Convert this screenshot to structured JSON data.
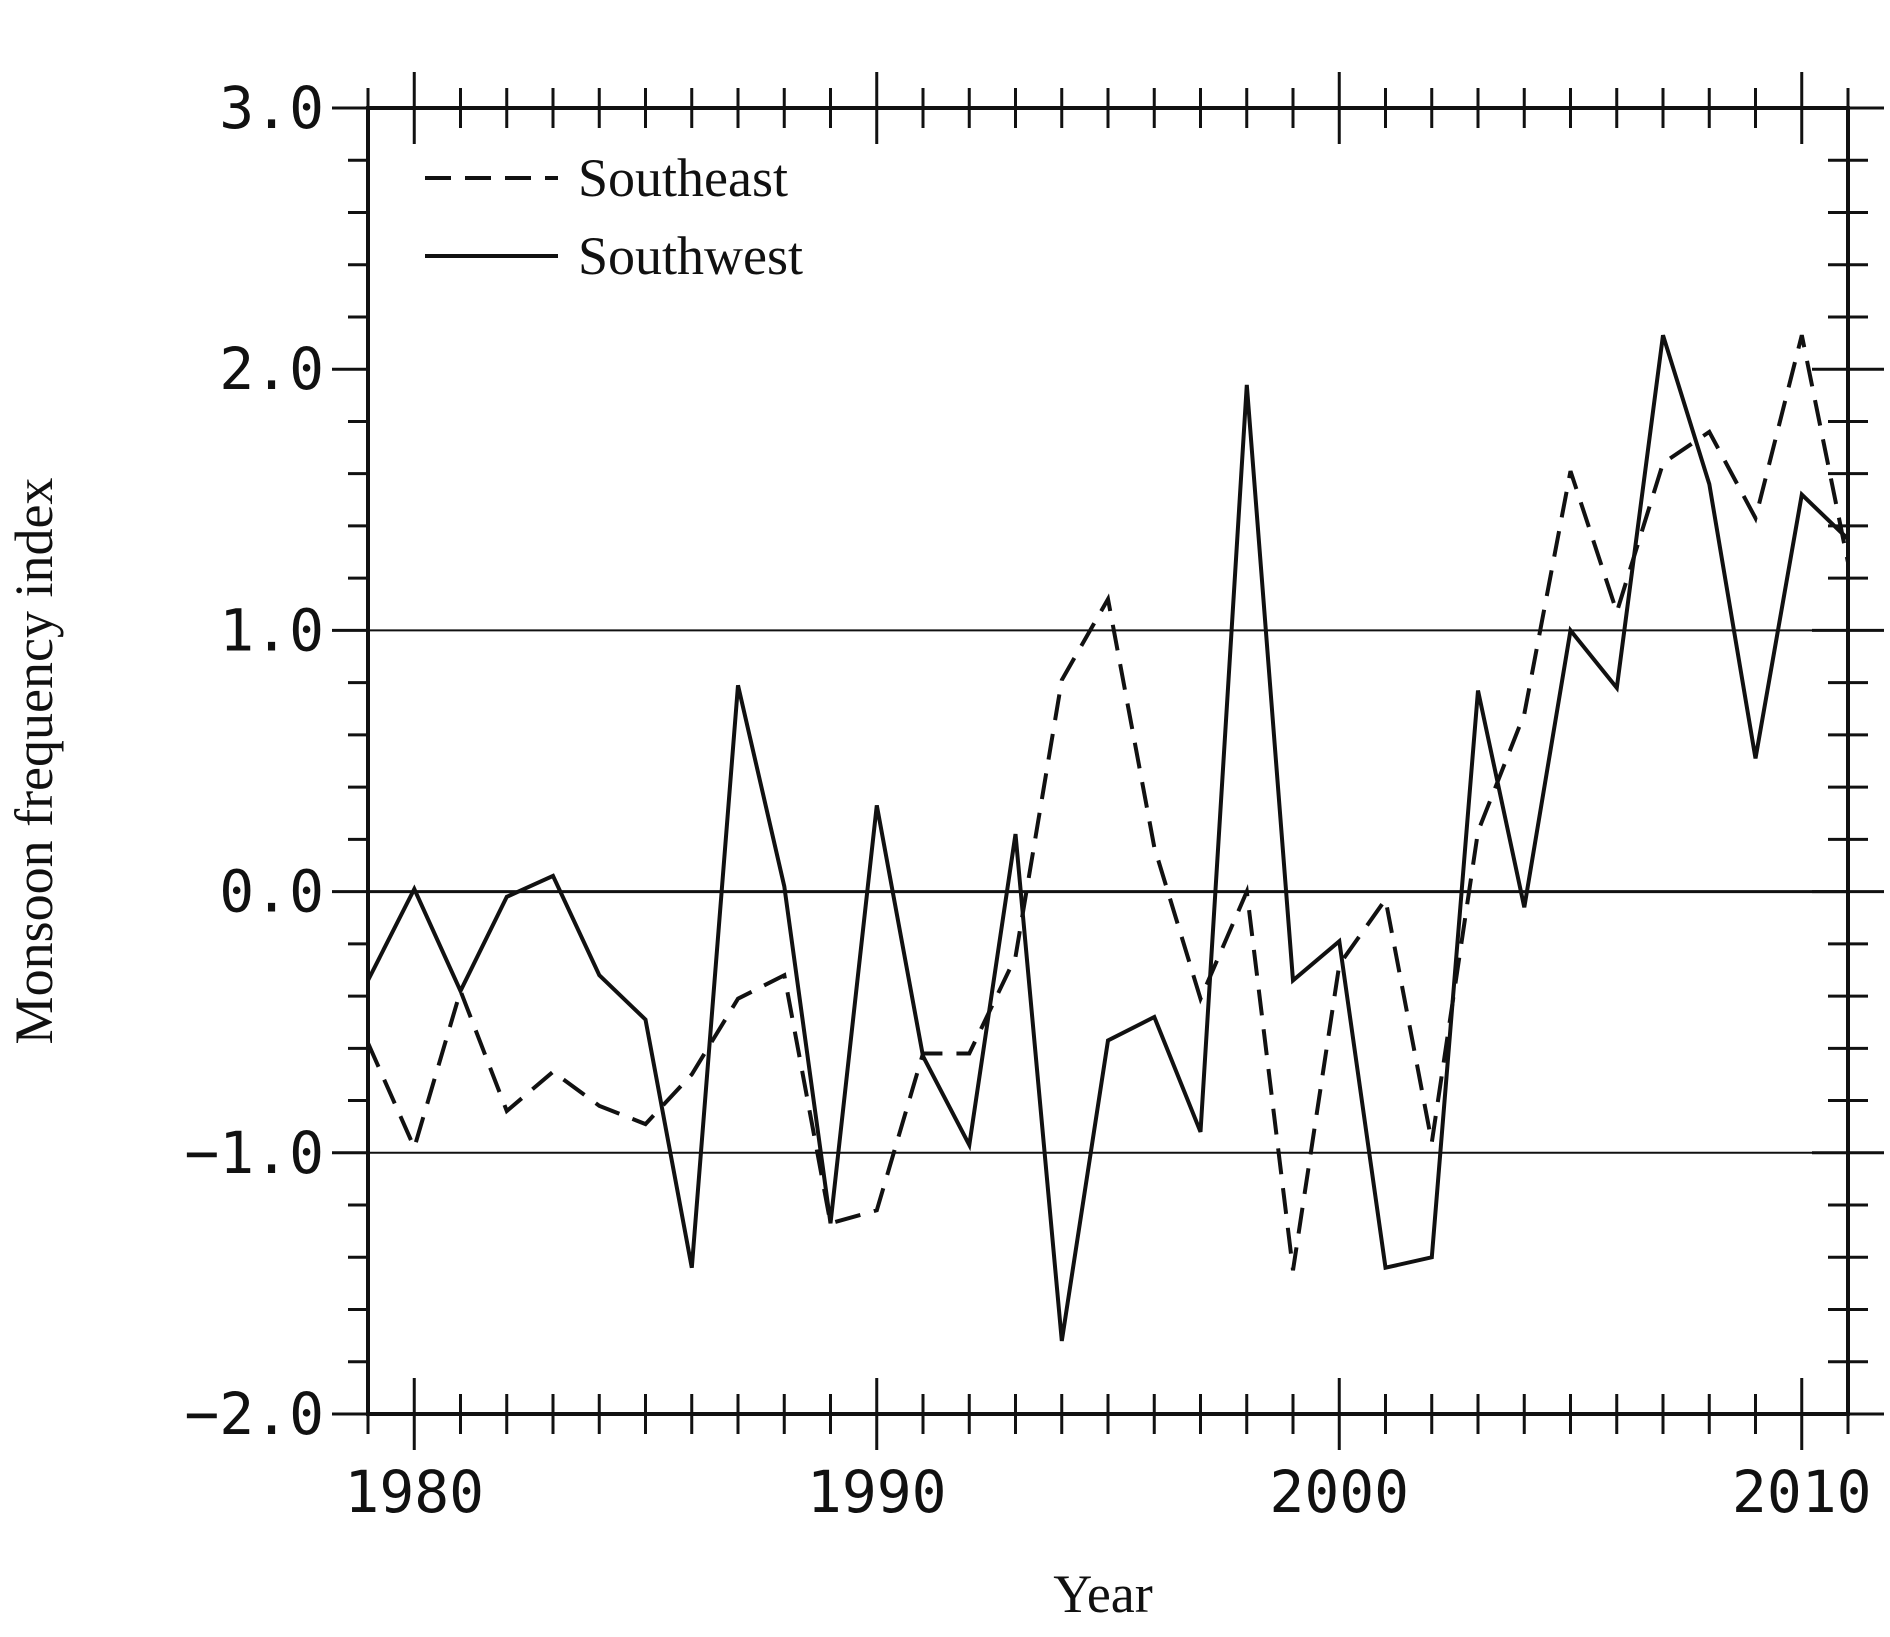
{
  "chart_data": {
    "type": "line",
    "title": "",
    "xlabel": "Year",
    "ylabel": "Monsoon frequency index",
    "xlim": [
      1979,
      2011
    ],
    "ylim": [
      -2.0,
      3.0
    ],
    "xticks": [
      1980,
      1990,
      2000,
      2010
    ],
    "xtick_labels": [
      "1980",
      "1990",
      "2000",
      "2010"
    ],
    "yticks": [
      -2.0,
      -1.0,
      0.0,
      1.0,
      2.0,
      3.0
    ],
    "ytick_labels": [
      "−2.0",
      "−1.0",
      "0.0",
      "1.0",
      "2.0",
      "3.0"
    ],
    "reference_lines": [
      -1.0,
      0.0,
      1.0
    ],
    "grid": false,
    "legend_position": "top-left",
    "x": [
      1979,
      1980,
      1981,
      1982,
      1983,
      1984,
      1985,
      1986,
      1987,
      1988,
      1989,
      1990,
      1991,
      1992,
      1993,
      1994,
      1995,
      1996,
      1997,
      1998,
      1999,
      2000,
      2001,
      2002,
      2003,
      2004,
      2005,
      2006,
      2007,
      2008,
      2009,
      2010,
      2011
    ],
    "series": [
      {
        "name": "Southeast",
        "style": "dashed",
        "color": "#111111",
        "values": [
          -0.58,
          -0.98,
          -0.38,
          -0.84,
          -0.69,
          -0.82,
          -0.89,
          -0.7,
          -0.41,
          -0.32,
          -1.27,
          -1.22,
          -0.62,
          -0.62,
          -0.25,
          0.81,
          1.12,
          0.17,
          -0.41,
          0.0,
          -1.45,
          -0.28,
          -0.03,
          -0.96,
          0.23,
          0.68,
          1.61,
          1.07,
          1.64,
          1.76,
          1.43,
          2.13,
          1.26
        ]
      },
      {
        "name": "Southwest",
        "style": "solid",
        "color": "#111111",
        "values": [
          -0.34,
          0.01,
          -0.38,
          -0.02,
          0.06,
          -0.32,
          -0.49,
          -1.44,
          0.79,
          0.02,
          -1.27,
          0.33,
          -0.63,
          -0.97,
          0.22,
          -1.72,
          -0.57,
          -0.48,
          -0.92,
          1.94,
          -0.34,
          -0.19,
          -1.44,
          -1.4,
          0.77,
          -0.06,
          1.0,
          0.78,
          2.13,
          1.56,
          0.51,
          1.52,
          1.35
        ]
      }
    ]
  }
}
